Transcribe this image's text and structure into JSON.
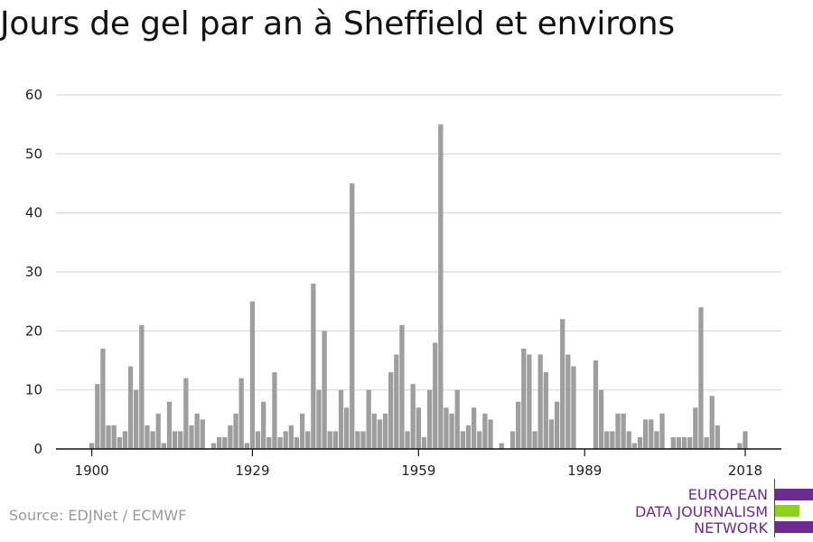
{
  "title": "Jours de gel par an à Sheffield et environs",
  "source": "Source: EDJNet / ECMWF",
  "logo": {
    "line1": "EUROPEAN",
    "line2": "DATA JOURNALISM",
    "line3": "NETWORK",
    "color_purple": "#6b2a8e",
    "color_green": "#8fd11b"
  },
  "colors": {
    "bar": "#9e9e9e",
    "grid": "#dddddd",
    "axis": "#111111",
    "tick_text": "#222222"
  },
  "chart_data": {
    "type": "bar",
    "x_start": 1900,
    "x_end": 2021,
    "x_tick_labels": [
      "1900",
      "1929",
      "1959",
      "1989",
      "2018"
    ],
    "y_tick_labels": [
      "0",
      "10",
      "20",
      "30",
      "40",
      "50",
      "60"
    ],
    "ylim": [
      0,
      60
    ],
    "grid": true,
    "values": [
      1,
      11,
      17,
      4,
      4,
      2,
      3,
      14,
      10,
      21,
      4,
      3,
      6,
      1,
      8,
      3,
      3,
      12,
      4,
      6,
      5,
      0,
      1,
      2,
      2,
      4,
      6,
      12,
      1,
      25,
      3,
      8,
      2,
      13,
      2,
      3,
      4,
      2,
      6,
      3,
      28,
      10,
      20,
      3,
      3,
      10,
      7,
      45,
      3,
      3,
      10,
      6,
      5,
      6,
      13,
      16,
      21,
      3,
      11,
      7,
      2,
      10,
      18,
      55,
      7,
      6,
      10,
      3,
      4,
      7,
      3,
      6,
      5,
      0,
      1,
      0,
      3,
      8,
      17,
      16,
      3,
      16,
      13,
      5,
      8,
      22,
      16,
      14,
      0,
      0,
      0,
      15,
      10,
      3,
      3,
      6,
      6,
      3,
      1,
      2,
      5,
      5,
      3,
      6,
      0,
      2,
      2,
      2,
      2,
      7,
      24,
      2,
      9,
      4,
      0,
      0,
      0,
      1,
      3,
      0,
      0,
      0
    ]
  }
}
